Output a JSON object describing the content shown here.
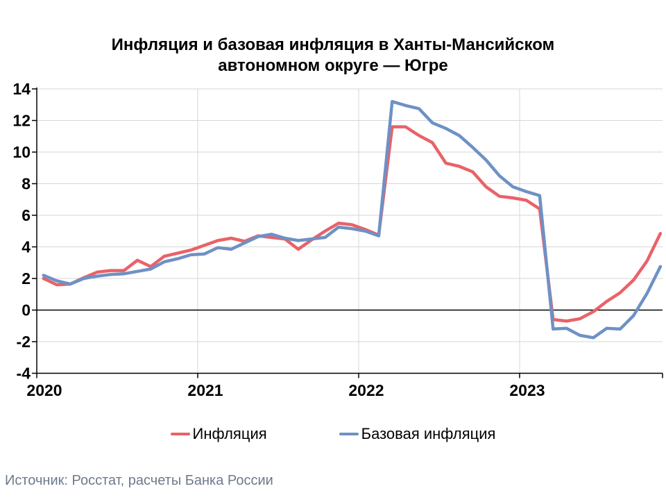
{
  "title": {
    "line1": "Инфляция и базовая инфляция в Ханты-Мансийском",
    "line2": "автономном округе — Югре"
  },
  "source": {
    "text": "Источник: Росстат, расчеты Банка России"
  },
  "colors": {
    "inflation_red": "#e96268",
    "core_blue": "#6e91c5",
    "gridline": "#d6d6d6",
    "axis": "#000000",
    "source_text": "#6d7a8b"
  },
  "chart_data": {
    "type": "line",
    "title": "Инфляция и базовая инфляция в Ханты-Мансийском автономном округе — Югре",
    "xlabel": "",
    "ylabel": "",
    "ylim": [
      -4,
      14
    ],
    "ytick_step": 2,
    "y_ticks": [
      -4,
      -2,
      0,
      2,
      4,
      6,
      8,
      10,
      12,
      14
    ],
    "x_tick_labels": [
      "2020",
      "2021",
      "2022",
      "2023"
    ],
    "grid": true,
    "legend_position": "bottom",
    "months": [
      "2020-01",
      "2020-02",
      "2020-03",
      "2020-04",
      "2020-05",
      "2020-06",
      "2020-07",
      "2020-08",
      "2020-09",
      "2020-10",
      "2020-11",
      "2020-12",
      "2021-01",
      "2021-02",
      "2021-03",
      "2021-04",
      "2021-05",
      "2021-06",
      "2021-07",
      "2021-08",
      "2021-09",
      "2021-10",
      "2021-11",
      "2021-12",
      "2022-01",
      "2022-02",
      "2022-03",
      "2022-04",
      "2022-05",
      "2022-06",
      "2022-07",
      "2022-08",
      "2022-09",
      "2022-10",
      "2022-11",
      "2022-12",
      "2023-01",
      "2023-02",
      "2023-03",
      "2023-04",
      "2023-05",
      "2023-06",
      "2023-07",
      "2023-08",
      "2023-09",
      "2023-10",
      "2023-11"
    ],
    "series": [
      {
        "name": "Инфляция",
        "color": "#e96268",
        "values": [
          2.0,
          1.6,
          1.65,
          2.05,
          2.4,
          2.5,
          2.5,
          3.15,
          2.75,
          3.4,
          3.6,
          3.8,
          4.1,
          4.4,
          4.55,
          4.35,
          4.7,
          4.6,
          4.5,
          3.85,
          4.45,
          5.0,
          5.5,
          5.4,
          5.1,
          4.75,
          11.6,
          11.6,
          11.05,
          10.6,
          9.3,
          9.1,
          8.75,
          7.8,
          7.2,
          7.1,
          6.95,
          6.4,
          -0.6,
          -0.7,
          -0.55,
          -0.1,
          0.55,
          1.1,
          1.9,
          3.1,
          4.85
        ]
      },
      {
        "name": "Базовая инфляция",
        "color": "#6e91c5",
        "values": [
          2.2,
          1.85,
          1.65,
          2.0,
          2.15,
          2.25,
          2.3,
          2.45,
          2.6,
          3.05,
          3.25,
          3.5,
          3.55,
          3.95,
          3.85,
          4.25,
          4.65,
          4.8,
          4.55,
          4.4,
          4.5,
          4.6,
          5.25,
          5.15,
          5.0,
          4.7,
          13.2,
          12.95,
          12.75,
          11.85,
          11.5,
          11.05,
          10.3,
          9.5,
          8.5,
          7.8,
          7.5,
          7.25,
          -1.2,
          -1.15,
          -1.6,
          -1.75,
          -1.15,
          -1.2,
          -0.35,
          1.05,
          2.75
        ]
      }
    ]
  }
}
